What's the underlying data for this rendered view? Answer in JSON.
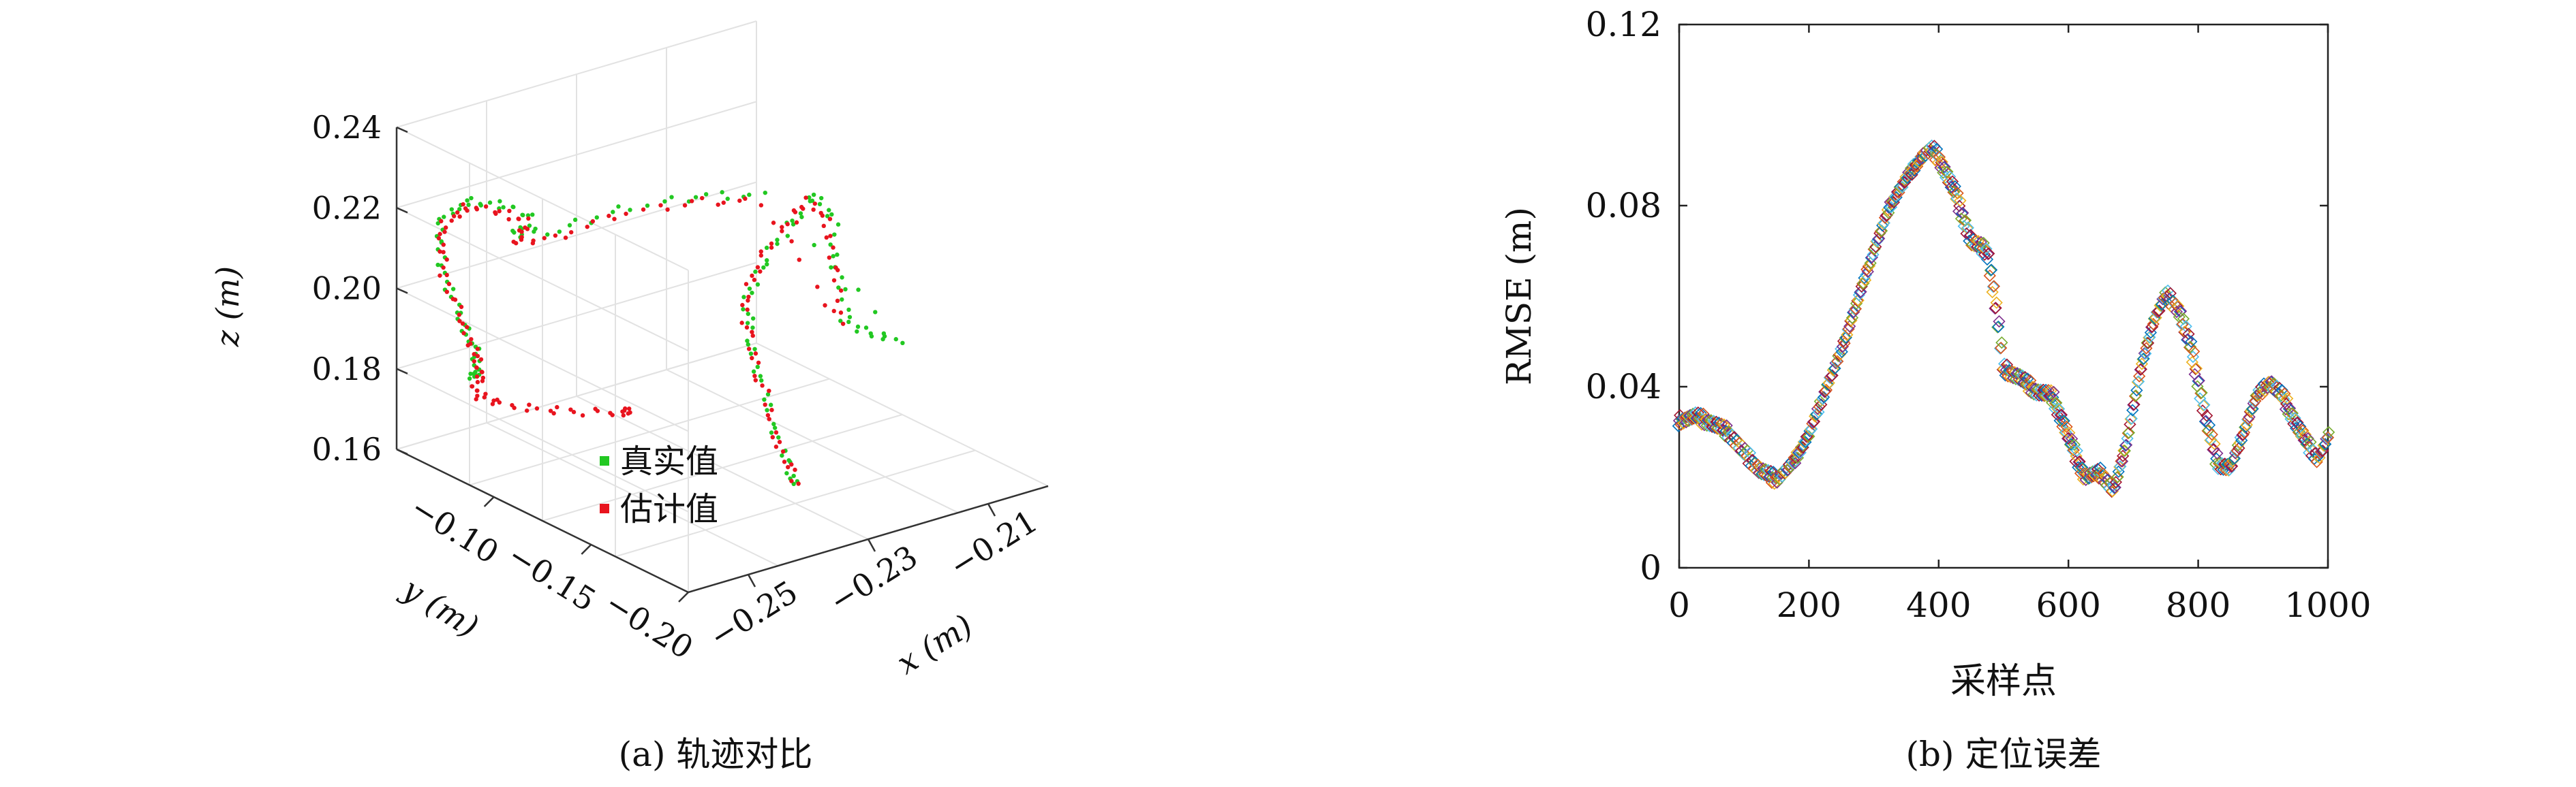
{
  "chart_data": [
    {
      "type": "scatter",
      "projection": "3d",
      "caption": "(a) 轨迹对比",
      "xlabel": "x (m)",
      "ylabel": "y (m)",
      "zlabel": "z (m)",
      "xlim": [
        -0.26,
        -0.2
      ],
      "ylim": [
        -0.2,
        -0.05
      ],
      "zlim": [
        0.16,
        0.24
      ],
      "xticks": [
        -0.25,
        -0.23,
        -0.21
      ],
      "xtick_labels": [
        "−0.25",
        "−0.23",
        "−0.21"
      ],
      "yticks": [
        -0.1,
        -0.15,
        -0.2
      ],
      "ytick_labels": [
        "−0.10",
        "−0.15",
        "−0.20"
      ],
      "zticks": [
        0.16,
        0.18,
        0.2,
        0.22,
        0.24
      ],
      "ztick_labels": [
        "0.16",
        "0.18",
        "0.20",
        "0.22",
        "0.24"
      ],
      "grid": true,
      "legend_placement": "lower-center",
      "series": [
        {
          "name": "真实值",
          "color": "#22c822",
          "points": [
            {
              "x": -0.24,
              "y": -0.195,
              "z": 0.176
            },
            {
              "x": -0.239,
              "y": -0.185,
              "z": 0.18
            },
            {
              "x": -0.237,
              "y": -0.172,
              "z": 0.186
            },
            {
              "x": -0.235,
              "y": -0.16,
              "z": 0.193
            },
            {
              "x": -0.233,
              "y": -0.148,
              "z": 0.199
            },
            {
              "x": -0.23,
              "y": -0.138,
              "z": 0.205
            },
            {
              "x": -0.225,
              "y": -0.13,
              "z": 0.21
            },
            {
              "x": -0.218,
              "y": -0.123,
              "z": 0.214
            },
            {
              "x": -0.212,
              "y": -0.116,
              "z": 0.218
            },
            {
              "x": -0.21,
              "y": -0.12,
              "z": 0.212
            },
            {
              "x": -0.213,
              "y": -0.132,
              "z": 0.204
            },
            {
              "x": -0.216,
              "y": -0.145,
              "z": 0.196
            },
            {
              "x": -0.214,
              "y": -0.15,
              "z": 0.192
            },
            {
              "x": -0.21,
              "y": -0.155,
              "z": 0.19
            },
            {
              "x": -0.218,
              "y": -0.11,
              "z": 0.219
            },
            {
              "x": -0.226,
              "y": -0.1,
              "z": 0.22
            },
            {
              "x": -0.236,
              "y": -0.092,
              "z": 0.219
            },
            {
              "x": -0.245,
              "y": -0.085,
              "z": 0.216
            },
            {
              "x": -0.249,
              "y": -0.075,
              "z": 0.214
            },
            {
              "x": -0.244,
              "y": -0.07,
              "z": 0.216
            },
            {
              "x": -0.246,
              "y": -0.06,
              "z": 0.217
            },
            {
              "x": -0.251,
              "y": -0.06,
              "z": 0.22
            },
            {
              "x": -0.256,
              "y": -0.062,
              "z": 0.219
            },
            {
              "x": -0.259,
              "y": -0.068,
              "z": 0.215
            },
            {
              "x": -0.26,
              "y": -0.075,
              "z": 0.208
            },
            {
              "x": -0.26,
              "y": -0.083,
              "z": 0.201
            },
            {
              "x": -0.26,
              "y": -0.088,
              "z": 0.196
            },
            {
              "x": -0.26,
              "y": -0.092,
              "z": 0.192
            },
            {
              "x": -0.26,
              "y": -0.09,
              "z": 0.188
            }
          ]
        },
        {
          "name": "估计值",
          "color": "#e8141e",
          "points": [
            {
              "x": -0.24,
              "y": -0.194,
              "z": 0.177
            },
            {
              "x": -0.239,
              "y": -0.184,
              "z": 0.181
            },
            {
              "x": -0.237,
              "y": -0.171,
              "z": 0.187
            },
            {
              "x": -0.235,
              "y": -0.159,
              "z": 0.194
            },
            {
              "x": -0.233,
              "y": -0.147,
              "z": 0.2
            },
            {
              "x": -0.23,
              "y": -0.137,
              "z": 0.206
            },
            {
              "x": -0.225,
              "y": -0.129,
              "z": 0.211
            },
            {
              "x": -0.218,
              "y": -0.122,
              "z": 0.215
            },
            {
              "x": -0.213,
              "y": -0.117,
              "z": 0.217
            },
            {
              "x": -0.211,
              "y": -0.121,
              "z": 0.211
            },
            {
              "x": -0.214,
              "y": -0.133,
              "z": 0.203
            },
            {
              "x": -0.217,
              "y": -0.146,
              "z": 0.195
            },
            {
              "x": -0.219,
              "y": -0.111,
              "z": 0.218
            },
            {
              "x": -0.227,
              "y": -0.101,
              "z": 0.219
            },
            {
              "x": -0.237,
              "y": -0.093,
              "z": 0.218
            },
            {
              "x": -0.246,
              "y": -0.086,
              "z": 0.215
            },
            {
              "x": -0.249,
              "y": -0.076,
              "z": 0.213
            },
            {
              "x": -0.245,
              "y": -0.071,
              "z": 0.215
            },
            {
              "x": -0.247,
              "y": -0.061,
              "z": 0.216
            },
            {
              "x": -0.252,
              "y": -0.061,
              "z": 0.219
            },
            {
              "x": -0.256,
              "y": -0.063,
              "z": 0.218
            },
            {
              "x": -0.259,
              "y": -0.069,
              "z": 0.214
            },
            {
              "x": -0.26,
              "y": -0.076,
              "z": 0.207
            },
            {
              "x": -0.26,
              "y": -0.084,
              "z": 0.2
            },
            {
              "x": -0.26,
              "y": -0.089,
              "z": 0.195
            },
            {
              "x": -0.26,
              "y": -0.093,
              "z": 0.191
            },
            {
              "x": -0.26,
              "y": -0.092,
              "z": 0.187
            },
            {
              "x": -0.26,
              "y": -0.09,
              "z": 0.183
            },
            {
              "x": -0.257,
              "y": -0.092,
              "z": 0.18
            },
            {
              "x": -0.252,
              "y": -0.098,
              "z": 0.178
            },
            {
              "x": -0.246,
              "y": -0.104,
              "z": 0.176
            },
            {
              "x": -0.241,
              "y": -0.11,
              "z": 0.175
            }
          ]
        }
      ]
    },
    {
      "type": "scatter",
      "caption": "(b) 定位误差",
      "xlabel": "采样点",
      "ylabel": "RMSE (m)",
      "xlim": [
        0,
        1000
      ],
      "ylim": [
        0,
        0.12
      ],
      "xticks": [
        0,
        200,
        400,
        600,
        800,
        1000
      ],
      "xtick_labels": [
        "0",
        "200",
        "400",
        "600",
        "800",
        "1000"
      ],
      "yticks": [
        0,
        0.04,
        0.08,
        0.12
      ],
      "ytick_labels": [
        "0",
        "0.04",
        "0.08",
        "0.12"
      ],
      "grid": false,
      "marker": "diamond-open",
      "colors": [
        "#0072bd",
        "#d95319",
        "#edb120",
        "#7e2f8e",
        "#77ac30",
        "#4dbeee",
        "#a2142f"
      ],
      "x": [
        0,
        25,
        50,
        75,
        100,
        125,
        150,
        175,
        200,
        225,
        250,
        275,
        300,
        325,
        350,
        375,
        390,
        400,
        425,
        450,
        475,
        490,
        500,
        525,
        550,
        575,
        600,
        625,
        650,
        670,
        690,
        710,
        730,
        750,
        770,
        790,
        810,
        830,
        850,
        870,
        890,
        910,
        930,
        950,
        970,
        985,
        1000
      ],
      "y": [
        0.0325,
        0.0335,
        0.032,
        0.03,
        0.0255,
        0.0215,
        0.0195,
        0.023,
        0.0295,
        0.039,
        0.048,
        0.059,
        0.07,
        0.08,
        0.086,
        0.091,
        0.0925,
        0.0905,
        0.083,
        0.072,
        0.07,
        0.056,
        0.044,
        0.042,
        0.039,
        0.038,
        0.029,
        0.02,
        0.021,
        0.017,
        0.028,
        0.043,
        0.054,
        0.0605,
        0.057,
        0.048,
        0.034,
        0.023,
        0.022,
        0.03,
        0.038,
        0.041,
        0.038,
        0.032,
        0.027,
        0.024,
        0.029
      ]
    }
  ]
}
